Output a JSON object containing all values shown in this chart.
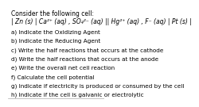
{
  "title": "Consider the following cell:",
  "cell_notation": "| Zn (s) | Ca²⁺ (aq) , SO₄²⁻ (aq) || Hg²⁺ (aq) , F⁻ (aq) | Pt (s) |",
  "questions": [
    "a) Indicate the Oxidizing Agent",
    "b) Indicate the Reducing Agent",
    "c) Write the half reactions that occurs at the cathode",
    "d) Write the half reactions that occurs at the anode",
    "e) Write the overall net cell reaction",
    "f) Calculate the cell potential",
    "g) Indicate if electricity is produced or consumed by the cell",
    "h) Indicate if the cell is galvanic or electrolytic"
  ],
  "bg_color": "#ffffff",
  "text_color": "#000000",
  "title_fontsize": 5.5,
  "cell_fontsize": 5.5,
  "question_fontsize": 5.2,
  "line_color": "#aaaaaa"
}
